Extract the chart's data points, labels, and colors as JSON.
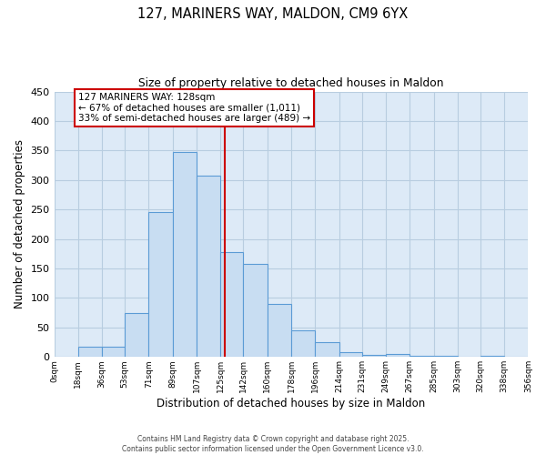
{
  "title": "127, MARINERS WAY, MALDON, CM9 6YX",
  "subtitle": "Size of property relative to detached houses in Maldon",
  "xlabel": "Distribution of detached houses by size in Maldon",
  "ylabel": "Number of detached properties",
  "bar_color": "#c8ddf2",
  "bar_edge_color": "#5b9bd5",
  "background_color": "#ffffff",
  "plot_bg_color": "#ddeaf7",
  "grid_color": "#b8cde0",
  "bin_edges": [
    0,
    18,
    36,
    53,
    71,
    89,
    107,
    125,
    142,
    160,
    178,
    196,
    214,
    231,
    249,
    267,
    285,
    303,
    320,
    338,
    356
  ],
  "bin_labels": [
    "0sqm",
    "18sqm",
    "36sqm",
    "53sqm",
    "71sqm",
    "89sqm",
    "107sqm",
    "125sqm",
    "142sqm",
    "160sqm",
    "178sqm",
    "196sqm",
    "214sqm",
    "231sqm",
    "249sqm",
    "267sqm",
    "285sqm",
    "303sqm",
    "320sqm",
    "338sqm",
    "356sqm"
  ],
  "bar_heights": [
    0,
    17,
    17,
    74,
    246,
    348,
    307,
    178,
    158,
    90,
    45,
    25,
    8,
    3,
    5,
    2,
    2,
    1,
    2,
    1
  ],
  "property_size": 128,
  "vline_color": "#cc0000",
  "annotation_line1": "127 MARINERS WAY: 128sqm",
  "annotation_line2": "← 67% of detached houses are smaller (1,011)",
  "annotation_line3": "33% of semi-detached houses are larger (489) →",
  "annotation_box_color": "#ffffff",
  "annotation_box_edge": "#cc0000",
  "ylim": [
    0,
    450
  ],
  "yticks": [
    0,
    50,
    100,
    150,
    200,
    250,
    300,
    350,
    400,
    450
  ],
  "footnote1": "Contains HM Land Registry data © Crown copyright and database right 2025.",
  "footnote2": "Contains public sector information licensed under the Open Government Licence v3.0."
}
